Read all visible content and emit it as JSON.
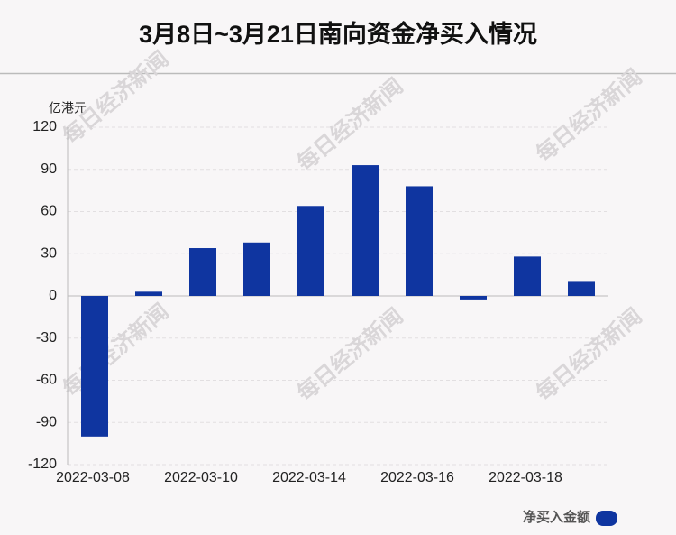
{
  "chart_data": {
    "type": "bar",
    "title": "3月8日~3月21日南向资金净买入情况",
    "y_axis_label": "亿港元",
    "watermark": "每日经济新闻",
    "categories": [
      "2022-03-08",
      null,
      "2022-03-10",
      null,
      "2022-03-14",
      null,
      "2022-03-16",
      null,
      "2022-03-18",
      null
    ],
    "series": [
      {
        "name": "净买入金额",
        "color": "#0f35a0",
        "values": [
          -100,
          3,
          34,
          38,
          64,
          93,
          78,
          -2.5,
          28,
          10
        ]
      }
    ],
    "ylim": [
      -120,
      120
    ],
    "yticks": [
      -120,
      -90,
      -60,
      -30,
      0,
      30,
      60,
      90,
      120
    ],
    "grid": true,
    "legend": "bottom-right"
  }
}
